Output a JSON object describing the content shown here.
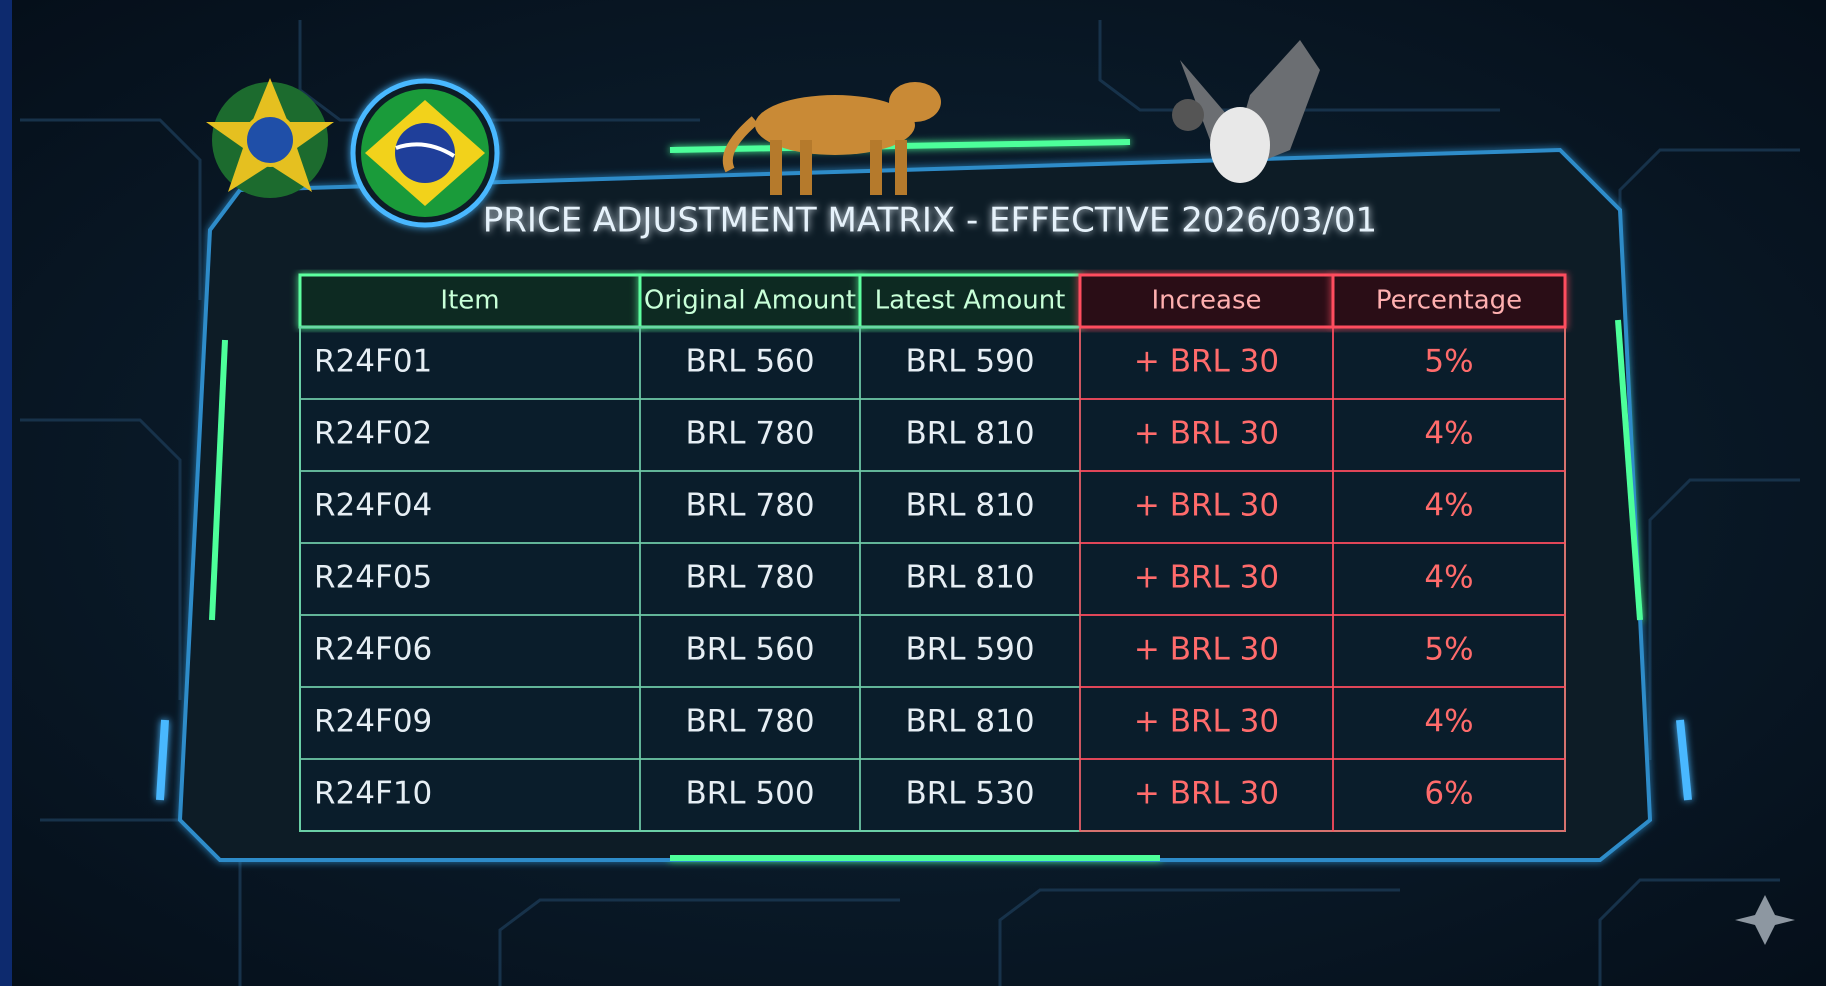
{
  "title": "PRICE ADJUSTMENT MATRIX - EFFECTIVE 2026/03/01",
  "table": {
    "headers": [
      "Item",
      "Original Amount",
      "Latest Amount",
      "Increase",
      "Percentage"
    ],
    "rows": [
      [
        "R24F01",
        "BRL 560",
        "BRL 590",
        "+ BRL 30",
        "5%"
      ],
      [
        "R24F02",
        "BRL 780",
        "BRL 810",
        "+ BRL 30",
        "4%"
      ],
      [
        "R24F04",
        "BRL 780",
        "BRL 810",
        "+ BRL 30",
        "4%"
      ],
      [
        "R24F05",
        "BRL 780",
        "BRL 810",
        "+ BRL 30",
        "4%"
      ],
      [
        "R24F06",
        "BRL 560",
        "BRL 590",
        "+ BRL 30",
        "5%"
      ],
      [
        "R24F09",
        "BRL 780",
        "BRL 810",
        "+ BRL 30",
        "4%"
      ],
      [
        "R24F10",
        "BRL 500",
        "BRL 530",
        "+ BRL 30",
        "6%"
      ]
    ]
  }
}
